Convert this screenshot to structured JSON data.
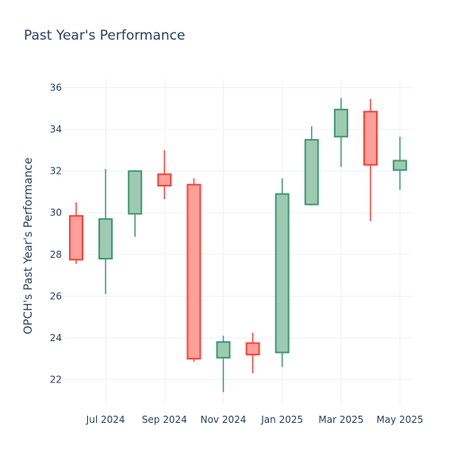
{
  "chart_data": {
    "type": "candlestick",
    "title": "Past Year's Performance",
    "xlabel": "",
    "ylabel": "OPCH's Past Year's Performance",
    "ylim": [
      20.8,
      36.4
    ],
    "yticks": [
      22,
      24,
      26,
      28,
      30,
      32,
      34,
      36
    ],
    "x_ticks": [
      {
        "label": "Jul 2024",
        "index": 1
      },
      {
        "label": "Sep 2024",
        "index": 3
      },
      {
        "label": "Nov 2024",
        "index": 5
      },
      {
        "label": "Jan 2025",
        "index": 7
      },
      {
        "label": "Mar 2025",
        "index": 9
      },
      {
        "label": "May 2025",
        "index": 11
      }
    ],
    "candles": [
      {
        "open": 29.85,
        "high": 30.5,
        "low": 27.55,
        "close": 27.75
      },
      {
        "open": 27.8,
        "high": 32.1,
        "low": 26.1,
        "close": 29.7
      },
      {
        "open": 29.95,
        "high": 32.05,
        "low": 28.85,
        "close": 32.0
      },
      {
        "open": 31.85,
        "high": 33.0,
        "low": 30.65,
        "close": 31.3
      },
      {
        "open": 31.35,
        "high": 31.65,
        "low": 22.85,
        "close": 23.0
      },
      {
        "open": 23.05,
        "high": 24.1,
        "low": 21.4,
        "close": 23.8
      },
      {
        "open": 23.75,
        "high": 24.25,
        "low": 22.3,
        "close": 23.2
      },
      {
        "open": 23.3,
        "high": 31.65,
        "low": 22.6,
        "close": 30.9
      },
      {
        "open": 30.4,
        "high": 34.15,
        "low": 30.35,
        "close": 33.5
      },
      {
        "open": 33.65,
        "high": 35.5,
        "low": 32.2,
        "close": 34.95
      },
      {
        "open": 34.85,
        "high": 35.45,
        "low": 29.6,
        "close": 32.3
      },
      {
        "open": 32.05,
        "high": 33.65,
        "low": 31.1,
        "close": 32.5
      }
    ],
    "colors": {
      "increasing_line": "#3d9970",
      "increasing_fill": "#9ecab4",
      "decreasing_line": "#ff4136",
      "decreasing_fill": "#ffa09a"
    }
  }
}
